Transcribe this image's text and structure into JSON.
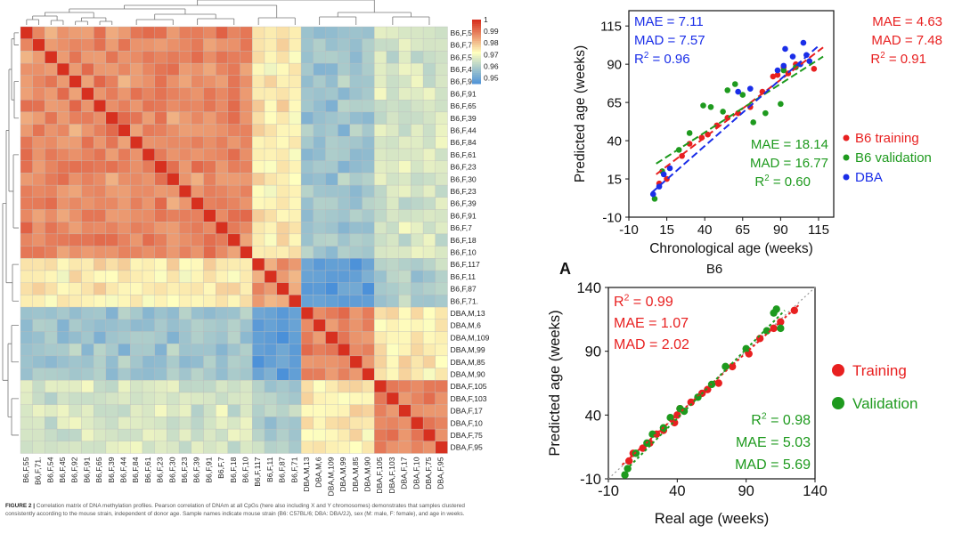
{
  "caption": {
    "label": "FIGURE 2 |",
    "text": "Correlation matrix of DNA methylation profiles. Pearson correlation of DNAm at all CpGs (here also including X and Y chromosomes) demonstrates that samples clustered consistently according to the mouse strain, independent of donor age. Sample names indicate mouse strain (B6: C57BL/6; DBA: DBA/2J), sex (M: male, F: female), and age in weeks."
  },
  "chart_data": [
    {
      "type": "heatmap",
      "samples": [
        "B6,F,55",
        "B6,F,71",
        "B6,F,54",
        "B6,F,45",
        "B6,F,92",
        "B6,F,91",
        "B6,F,65",
        "B6,F,39",
        "B6,F,44",
        "B6,F,84",
        "B6,F,61",
        "B6,F,23",
        "B6,F,30",
        "B6,F,23",
        "B6,F,39",
        "B6,F,91",
        "B6,F,7",
        "B6,F,18",
        "B6,F,10",
        "B6,F,117",
        "B6,F,11",
        "B6,F,87",
        "B6,F,71.",
        "DBA,M,13",
        "DBA,M,6",
        "DBA,M,109",
        "DBA,M,99",
        "DBA,M,85",
        "DBA,M,90",
        "DBA,F,105",
        "DBA,F,103",
        "DBA,F,17",
        "DBA,F,10",
        "DBA,F,75",
        "DBA,F,95"
      ],
      "col_labels": [
        "B6,F,55",
        "B6,F,71.",
        "B6,F,54",
        "B6,F,45",
        "B6,F,92",
        "B6,F,91",
        "B6,F,65",
        "B6,F,39",
        "B6,F,44",
        "B6,F,84",
        "B6,F,61",
        "B6,F,23",
        "B6,F,30",
        "B6,F,23",
        "B6,F,39",
        "B6,F,91",
        "B6,F,7",
        "B6,F,18",
        "B6,F,10",
        "B6,F,117",
        "B6,F,11",
        "B6,F,87",
        "B6,F,71",
        "DBA,M,13",
        "DBA,M,6",
        "DBA,M,109",
        "DBA,M,99",
        "DBA,M,85",
        "DBA,M,90",
        "DBA,F,105",
        "DBA,F,103",
        "DBA,F,17",
        "DBA,F,10",
        "DBA,F,75",
        "DBA,F,95"
      ],
      "groups": [
        0,
        0,
        0,
        0,
        0,
        0,
        0,
        0,
        0,
        0,
        0,
        0,
        0,
        0,
        0,
        0,
        0,
        0,
        0,
        1,
        1,
        1,
        1,
        2,
        2,
        2,
        2,
        2,
        2,
        3,
        3,
        3,
        3,
        3,
        3
      ],
      "group_correlation": [
        [
          0.988,
          0.975,
          0.958,
          0.966
        ],
        [
          0.975,
          0.985,
          0.948,
          0.96
        ],
        [
          0.958,
          0.948,
          0.988,
          0.975
        ],
        [
          0.966,
          0.96,
          0.975,
          0.988
        ]
      ],
      "colorbar": {
        "ticks": [
          "1",
          "0.99",
          "0.98",
          "0.97",
          "0.96",
          "0.95"
        ],
        "min": 0.945,
        "max": 1.0
      },
      "colors": {
        "high": "#d7301f",
        "mid": "#ffffbf",
        "low": "#4a90d9"
      }
    },
    {
      "type": "scatter",
      "xlabel": "Chronological age (weeks)",
      "ylabel": "Predicted age (weeks)",
      "xlim": [
        -10,
        125
      ],
      "ylim": [
        -10,
        125
      ],
      "xticks": [
        "-10",
        "15",
        "40",
        "65",
        "90",
        "115"
      ],
      "yticks": [
        "-10",
        "15",
        "40",
        "65",
        "90",
        "115"
      ],
      "series": [
        {
          "name": "B6 training",
          "color": "#e82020",
          "x": [
            10,
            15,
            25,
            30,
            38,
            42,
            48,
            55,
            62,
            70,
            78,
            85,
            88,
            92,
            95,
            100,
            112
          ],
          "y": [
            12,
            15,
            30,
            38,
            42,
            44,
            50,
            55,
            58,
            62,
            72,
            82,
            83,
            88,
            84,
            90,
            87
          ]
        },
        {
          "name": "B6 validation",
          "color": "#1e9a1e",
          "x": [
            7,
            12,
            23,
            30,
            39,
            44,
            52,
            55,
            60,
            65,
            72,
            80,
            90,
            92,
            100
          ],
          "y": [
            2,
            20,
            34,
            45,
            63,
            62,
            59,
            73,
            77,
            70,
            52,
            58,
            64,
            86,
            88
          ]
        },
        {
          "name": "DBA",
          "color": "#1a2ee8",
          "x": [
            6,
            10,
            13,
            17,
            62,
            70,
            88,
            92,
            93,
            98,
            103,
            105,
            107,
            109
          ],
          "y": [
            5,
            10,
            18,
            22,
            72,
            74,
            86,
            89,
            100,
            95,
            90,
            104,
            96,
            92
          ]
        }
      ],
      "fit_lines": [
        {
          "color": "#e82020",
          "x": [
            8,
            118
          ],
          "y": [
            18,
            101
          ]
        },
        {
          "color": "#1e9a1e",
          "x": [
            8,
            118
          ],
          "y": [
            25,
            95
          ]
        },
        {
          "color": "#1a2ee8",
          "x": [
            5,
            115
          ],
          "y": [
            6,
            102
          ]
        }
      ],
      "stats": {
        "dba": {
          "mae": "MAE = 7.11",
          "mad": "MAD = 7.57",
          "r2": "R",
          "r2sup": "2",
          "r2val": " = 0.96"
        },
        "train": {
          "mae": "MAE = 4.63",
          "mad": "MAD = 7.48",
          "r2": "R",
          "r2sup": "2",
          "r2val": " = 0.91"
        },
        "val": {
          "mae": "MAE = 18.14",
          "mad": "MAD = 16.77",
          "r2": "R",
          "r2sup": "2",
          "r2val": " = 0.60"
        }
      },
      "legend_position": "bottom-right"
    },
    {
      "type": "scatter",
      "panel_letter": "A",
      "title": "B6",
      "xlabel": "Real age (weeks)",
      "ylabel": "Predicted age (weeks)",
      "xlim": [
        -10,
        140
      ],
      "ylim": [
        -10,
        140
      ],
      "xticks": [
        "-10",
        "40",
        "90",
        "140"
      ],
      "yticks": [
        "-10",
        "40",
        "90",
        "140"
      ],
      "series": [
        {
          "name": "Training",
          "color": "#e82020",
          "x": [
            5,
            8,
            15,
            20,
            25,
            30,
            38,
            40,
            42,
            50,
            58,
            62,
            70,
            80,
            92,
            100,
            110,
            115,
            125
          ],
          "y": [
            4,
            10,
            14,
            18,
            25,
            28,
            34,
            40,
            45,
            50,
            57,
            60,
            65,
            78,
            88,
            100,
            108,
            113,
            122
          ]
        },
        {
          "name": "Validation",
          "color": "#1e9a1e",
          "x": [
            2,
            4,
            10,
            18,
            22,
            30,
            35,
            42,
            45,
            55,
            65,
            75,
            90,
            105,
            110,
            112,
            115
          ],
          "y": [
            -7,
            -2,
            10,
            18,
            25,
            30,
            38,
            45,
            43,
            54,
            64,
            78,
            92,
            106,
            120,
            123,
            108
          ]
        }
      ],
      "fit_lines": [
        {
          "color": "#e82020",
          "x": [
            0,
            128
          ],
          "y": [
            1,
            126
          ]
        },
        {
          "color": "#1e9a1e",
          "x": [
            0,
            118
          ],
          "y": [
            -6,
            122
          ]
        }
      ],
      "identity_line": {
        "x": [
          -10,
          140
        ],
        "y": [
          -10,
          140
        ],
        "color": "#999999"
      },
      "stats": {
        "train": {
          "r2": "R",
          "r2sup": "2",
          "r2val": " = 0.99",
          "mae": "MAE = 1.07",
          "mad": "MAD = 2.02"
        },
        "val": {
          "r2": "R",
          "r2sup": "2",
          "r2val": " = 0.98",
          "mae": "MAE = 5.03",
          "mad": "MAD = 5.69"
        }
      },
      "legend_position": "right"
    }
  ]
}
